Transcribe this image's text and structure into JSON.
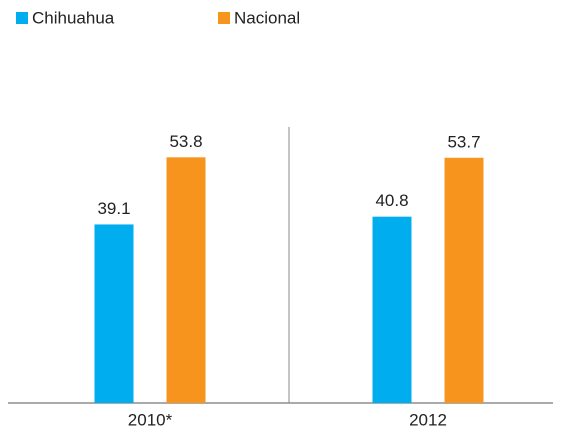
{
  "chart_data": {
    "type": "bar",
    "categories": [
      "2010*",
      "2012"
    ],
    "series": [
      {
        "name": "Chihuahua",
        "color": "#00aeef",
        "values": [
          39.1,
          40.8
        ]
      },
      {
        "name": "Nacional",
        "color": "#f7941d",
        "values": [
          53.8,
          53.7
        ]
      }
    ],
    "ylim": [
      0,
      60
    ]
  }
}
